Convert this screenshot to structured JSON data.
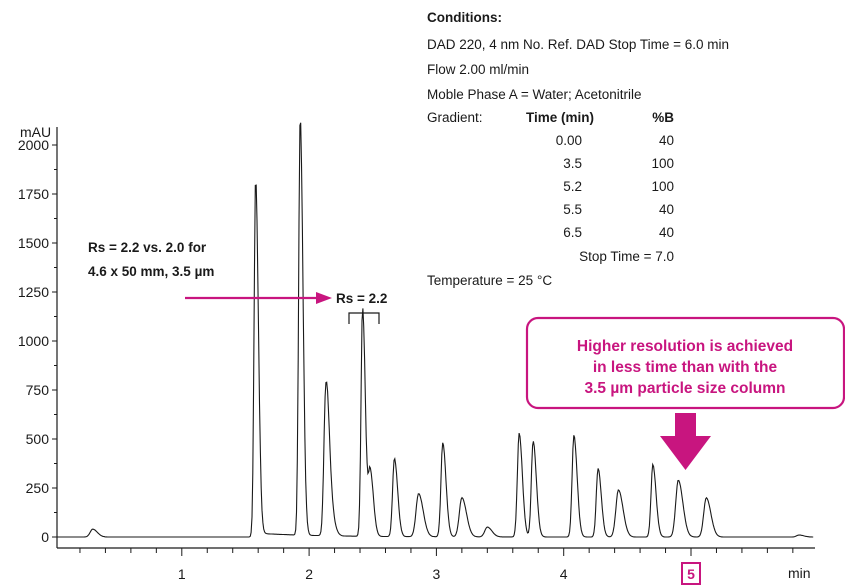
{
  "chart_data": {
    "type": "line",
    "ylabel": "mAU",
    "xlabel": "min",
    "xlim": [
      0,
      5.2
    ],
    "ylim": [
      -50,
      2150
    ],
    "x_ticks": [
      "1",
      "2",
      "3",
      "4",
      "5"
    ],
    "y_ticks": [
      "0",
      "250",
      "500",
      "750",
      "1000",
      "1250",
      "1500",
      "1750",
      "2000"
    ],
    "peaks": [
      {
        "x": 0.3,
        "y": 40
      },
      {
        "x": 1.58,
        "y": 1810
      },
      {
        "x": 1.93,
        "y": 2140
      },
      {
        "x": 2.13,
        "y": 650
      },
      {
        "x": 2.15,
        "y": 200
      },
      {
        "x": 2.42,
        "y": 1170
      },
      {
        "x": 2.48,
        "y": 330
      },
      {
        "x": 2.67,
        "y": 400
      },
      {
        "x": 2.86,
        "y": 220
      },
      {
        "x": 3.05,
        "y": 480
      },
      {
        "x": 3.2,
        "y": 200
      },
      {
        "x": 3.4,
        "y": 50
      },
      {
        "x": 3.65,
        "y": 530
      },
      {
        "x": 3.76,
        "y": 490
      },
      {
        "x": 4.08,
        "y": 520
      },
      {
        "x": 4.27,
        "y": 350
      },
      {
        "x": 4.43,
        "y": 240
      },
      {
        "x": 4.7,
        "y": 370
      },
      {
        "x": 4.9,
        "y": 290
      },
      {
        "x": 5.12,
        "y": 200
      },
      {
        "x": 5.85,
        "y": 10
      }
    ],
    "highlighted_tick": "5"
  },
  "conditions": {
    "heading": "Conditions:",
    "lines": [
      "DAD 220, 4 nm No. Ref. DAD Stop Time = 6.0 min",
      "Flow 2.00 ml/min",
      "Moble Phase A = Water; Acetonitrile"
    ],
    "gradient_label": "Gradient:",
    "col_time": "Time (min)",
    "col_b": "%B",
    "rows": [
      {
        "time": "0.00",
        "b": "40"
      },
      {
        "time": "3.5",
        "b": "100"
      },
      {
        "time": "5.2",
        "b": "100"
      },
      {
        "time": "5.5",
        "b": "40"
      },
      {
        "time": "6.5",
        "b": "40"
      }
    ],
    "stop_time": "Stop Time = 7.0",
    "temperature": "Temperature = 25 °C"
  },
  "annotations": {
    "rs_compare_line1": "Rs = 2.2 vs. 2.0 for",
    "rs_compare_line2": "4.6 x 50 mm, 3.5 µm",
    "rs_label": "Rs = 2.2",
    "callout_line1": "Higher resolution is achieved",
    "callout_line2": "in less time than with the",
    "callout_line3": "3.5 µm particle size column"
  },
  "colors": {
    "accent": "#c8157f",
    "trace": "#1a1a1a"
  }
}
